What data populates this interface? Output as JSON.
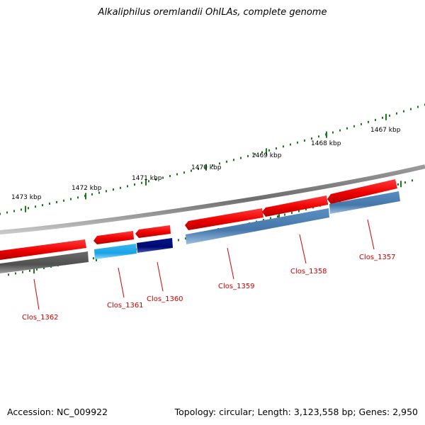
{
  "title": "Alkaliphilus oremlandii OhILAs, complete genome",
  "footer": {
    "accession": "Accession: NC_009922",
    "summary": "Topology: circular; Length: 3,123,558 bp; Genes: 2,950"
  },
  "colors": {
    "backbone": "#808080",
    "tick": "#1a7a1a",
    "gene_forward": "#ee0000",
    "gene_label": "#cc0000",
    "feature_gray": "#5a5a5a",
    "feature_cyan": "#22aaee",
    "feature_navy": "#000a78",
    "feature_steel": "#4a7fb2"
  },
  "scale_labels": [
    "1473 kbp",
    "1472 kbp",
    "1471 kbp",
    "1470 kbp",
    "1469 kbp",
    "1468 kbp",
    "1467 kbp"
  ],
  "genes": [
    "Clos_1362",
    "Clos_1361",
    "Clos_1360",
    "Clos_1359",
    "Clos_1358",
    "Clos_1357"
  ]
}
